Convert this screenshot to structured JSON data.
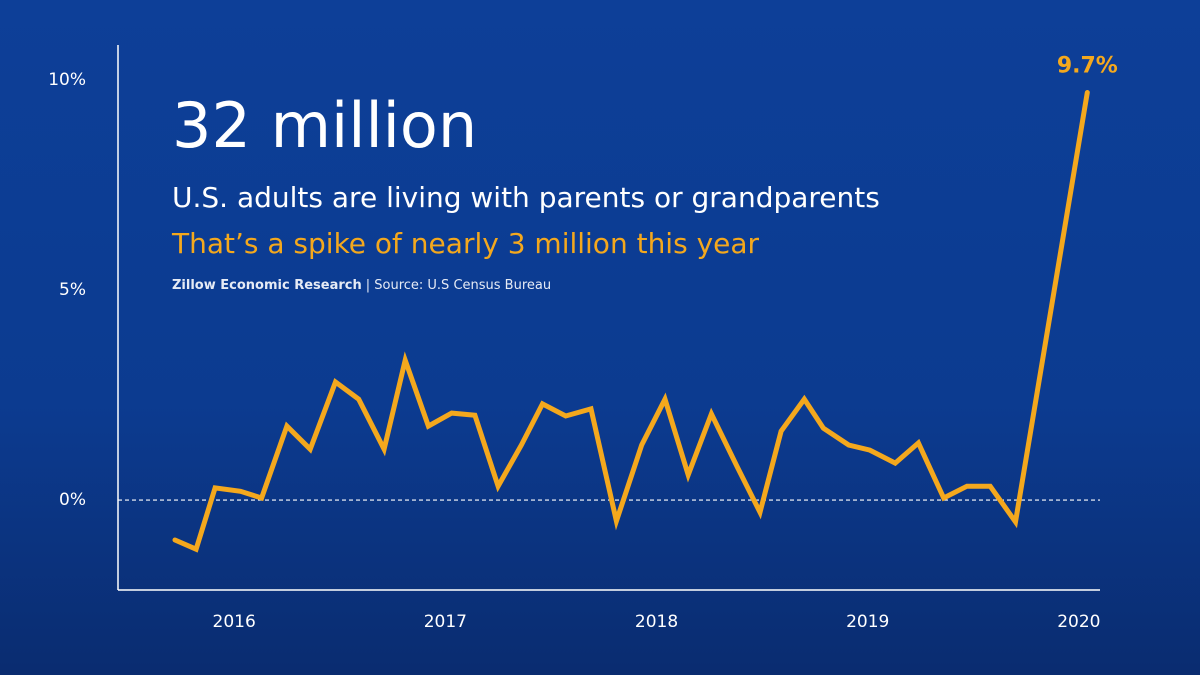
{
  "chart_data": {
    "type": "line",
    "title": "32 million",
    "subtitle": "U.S. adults are living with parents or grandparents",
    "annotation": "That’s a spike of nearly 3 million this year",
    "credit": "Zillow Economic Research",
    "source": "| Source: U.S Census Bureau",
    "x": [
      2015.72,
      2015.82,
      2015.91,
      2016.03,
      2016.13,
      2016.25,
      2016.36,
      2016.48,
      2016.59,
      2016.71,
      2016.81,
      2016.92,
      2017.03,
      2017.14,
      2017.25,
      2017.36,
      2017.46,
      2017.57,
      2017.69,
      2017.81,
      2017.93,
      2018.04,
      2018.15,
      2018.26,
      2018.38,
      2018.49,
      2018.59,
      2018.7,
      2018.79,
      2018.91,
      2019.01,
      2019.13,
      2019.24,
      2019.36,
      2019.47,
      2019.58,
      2019.7,
      2020.04
    ],
    "series": [
      {
        "color": "#f4a81d",
        "values": [
          -0.95,
          -1.17,
          0.29,
          0.21,
          0.05,
          1.76,
          1.21,
          2.81,
          2.4,
          1.21,
          3.33,
          1.76,
          2.07,
          2.02,
          0.33,
          1.31,
          2.29,
          2.0,
          2.17,
          -0.5,
          1.31,
          2.4,
          0.6,
          2.05,
          0.81,
          -0.29,
          1.64,
          2.4,
          1.71,
          1.31,
          1.19,
          0.88,
          1.36,
          0.05,
          0.33,
          0.33,
          -0.52,
          9.7
        ],
        "value_labels": [
          null,
          null,
          null,
          null,
          null,
          null,
          null,
          null,
          null,
          null,
          null,
          null,
          null,
          null,
          null,
          null,
          null,
          null,
          null,
          null,
          null,
          null,
          null,
          null,
          null,
          null,
          null,
          null,
          null,
          null,
          null,
          null,
          null,
          null,
          null,
          null,
          null,
          "9.7%"
        ]
      }
    ],
    "xlim": [
      2015.45,
      2020.1
    ],
    "xticks": [
      2016,
      2017,
      2018,
      2019,
      2020
    ],
    "ylim": [
      -2.14,
      10.83
    ],
    "yticks": [
      {
        "value": 0,
        "label": "0%"
      },
      {
        "value": 5,
        "label": "5%"
      },
      {
        "value": 10,
        "label": "10%"
      }
    ],
    "zero_line": true,
    "grid": false
  }
}
